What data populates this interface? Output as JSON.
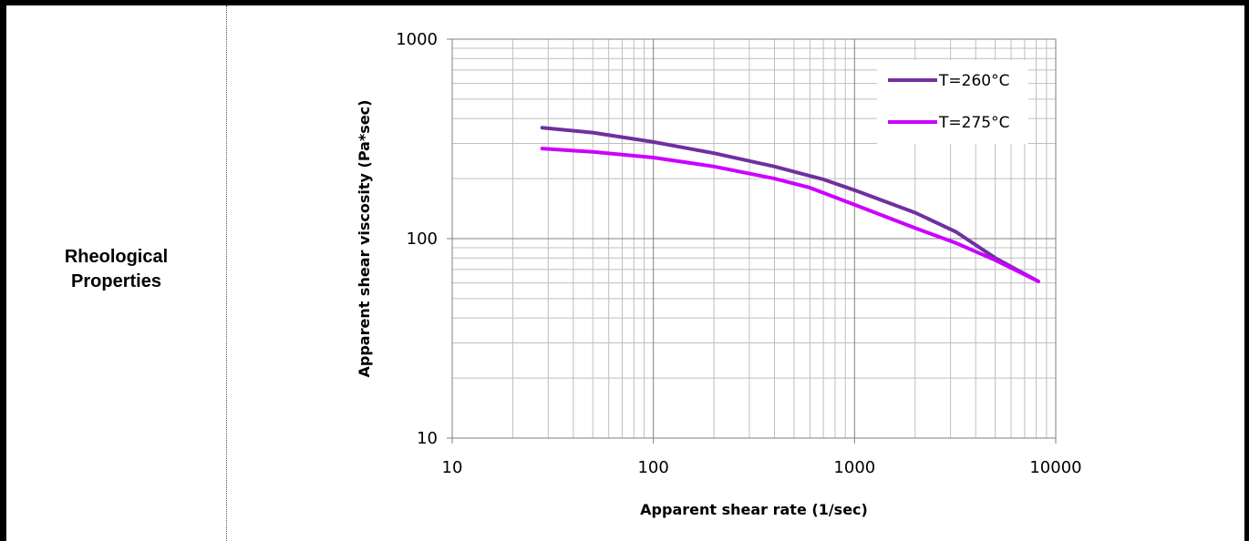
{
  "table_row": {
    "label_line1": "Rheological",
    "label_line2": "Properties"
  },
  "chart_data": {
    "type": "line",
    "xscale": "log",
    "yscale": "log",
    "xlim": [
      10,
      10000
    ],
    "ylim": [
      10,
      1000
    ],
    "xticks": [
      "10",
      "100",
      "1000",
      "10000"
    ],
    "yticks": [
      "10",
      "100",
      "1000"
    ],
    "xlabel": "Apparent shear rate (1/sec)",
    "ylabel": "Apparent shear viscosity (Pa*sec)",
    "grid": "major and minor",
    "legend_position": "top-right",
    "series": [
      {
        "name": "T=260°C",
        "color": "#7030a0",
        "x": [
          28,
          50,
          100,
          200,
          400,
          700,
          1000,
          2000,
          3200,
          5000,
          8200
        ],
        "y": [
          360,
          340,
          305,
          268,
          230,
          198,
          175,
          135,
          108,
          80,
          61
        ]
      },
      {
        "name": "T=275°C",
        "color": "#cc00ff",
        "x": [
          28,
          50,
          100,
          200,
          400,
          600,
          1000,
          2000,
          3200,
          5000,
          8200
        ],
        "y": [
          283,
          272,
          255,
          230,
          200,
          180,
          148,
          113,
          95,
          78,
          61
        ]
      }
    ]
  }
}
